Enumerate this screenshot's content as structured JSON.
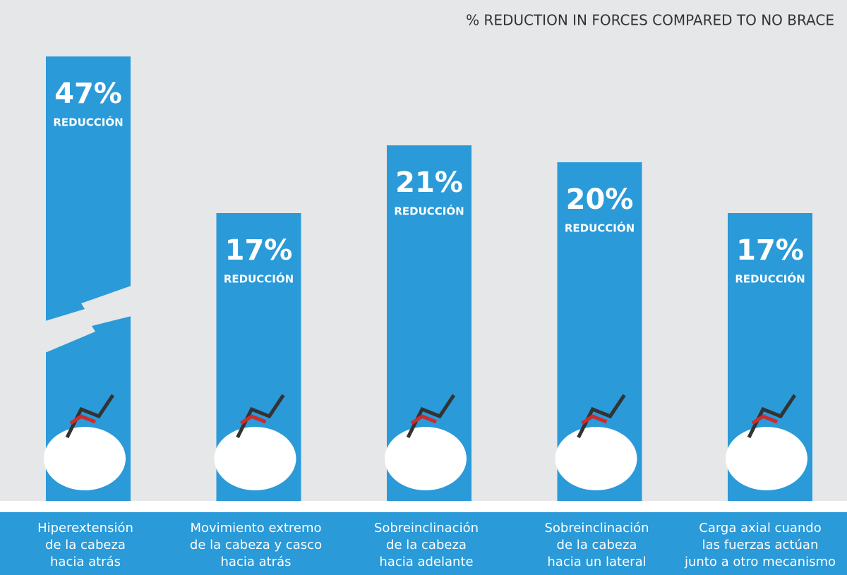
{
  "chart_data": {
    "type": "bar",
    "title": "% REDUCTION IN FORCES COMPARED TO NO BRACE",
    "categories": [
      [
        "Hiperextensión",
        "de la cabeza",
        "hacia atrás"
      ],
      [
        "Movimiento extremo",
        "de la cabeza y casco",
        "hacia atrás"
      ],
      [
        "Sobreinclinación",
        "de la cabeza",
        "hacia adelante"
      ],
      [
        "Sobreinclinación",
        "de la cabeza",
        "hacia un lateral"
      ],
      [
        "Carga axial cuando",
        "las fuerzas actúan",
        "junto a otro mecanismo"
      ]
    ],
    "values": [
      47,
      17,
      21,
      20,
      17
    ],
    "value_labels": [
      "47%",
      "17%",
      "21%",
      "20%",
      "17%"
    ],
    "bar_label": "REDUCCIÓN",
    "color": "#2a9ad8"
  }
}
